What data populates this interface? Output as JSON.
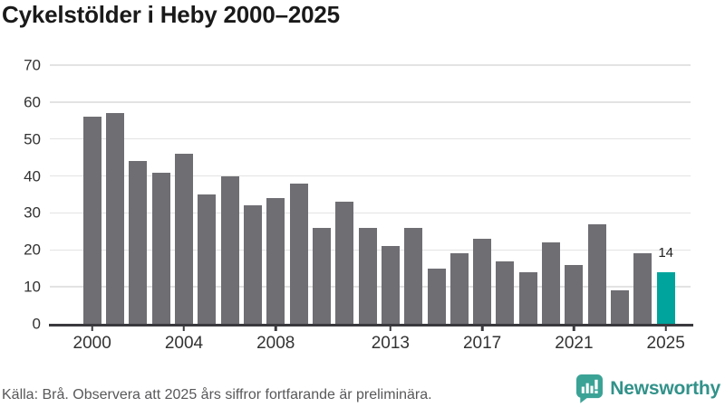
{
  "title": "Cykelstölder i Heby 2000–2025",
  "footer": {
    "source_note": "Källa: Brå. Observera att 2025 års siffror fortfarande är preliminära."
  },
  "branding": {
    "logo_text": "Newsworthy",
    "logo_icon": "bar-chart-speech-bubble-icon",
    "logo_text_color": "#32928a",
    "logo_icon_color": "#3ba296"
  },
  "chart_data": {
    "type": "bar",
    "title": "Cykelstölder i Heby 2000–2025",
    "categories": [
      "2000",
      "2001",
      "2002",
      "2003",
      "2004",
      "2005",
      "2006",
      "2007",
      "2008",
      "2009",
      "2010",
      "2011",
      "2012",
      "2013",
      "2014",
      "2015",
      "2016",
      "2017",
      "2018",
      "2019",
      "2020",
      "2021",
      "2022",
      "2023",
      "2024",
      "2025"
    ],
    "values": [
      56,
      57,
      44,
      41,
      46,
      35,
      40,
      32,
      34,
      38,
      26,
      33,
      26,
      21,
      26,
      15,
      19,
      23,
      17,
      14,
      22,
      16,
      27,
      9,
      19,
      14
    ],
    "xlabel": "",
    "ylabel": "",
    "ylim": [
      0,
      70
    ],
    "y_ticks": [
      0,
      10,
      20,
      30,
      40,
      50,
      60,
      70
    ],
    "x_tick_labels": [
      "2000",
      "2004",
      "2008",
      "2013",
      "2017",
      "2021",
      "2025"
    ],
    "grid": "horizontal",
    "legend": "none",
    "bar_color": "#6e6e73",
    "highlight_color": "#00a49c",
    "highlight_category": "2025",
    "highlight_index": 25,
    "highlight_label": "14"
  }
}
